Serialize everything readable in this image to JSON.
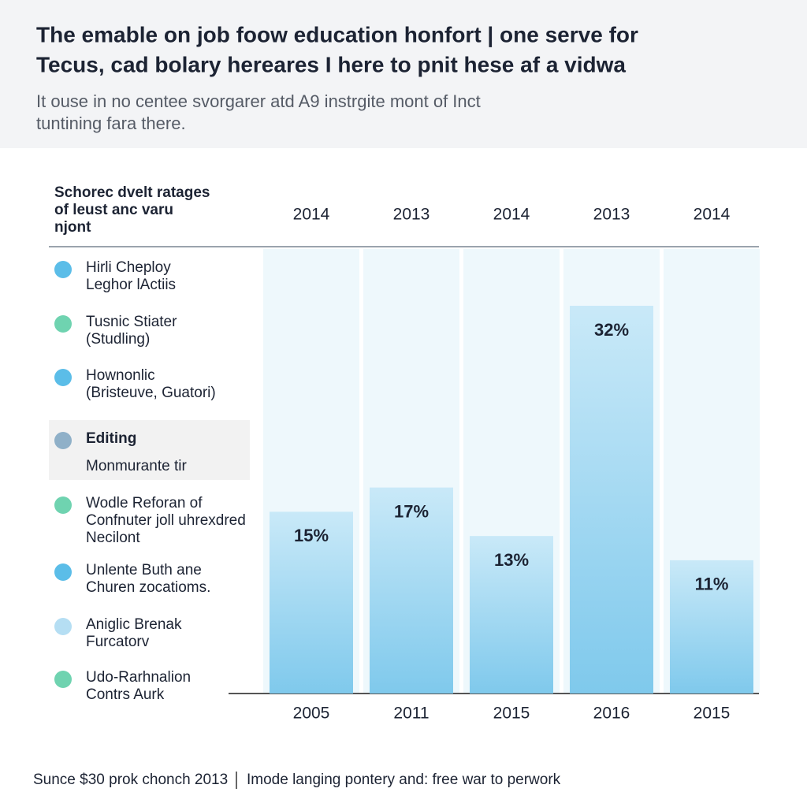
{
  "chart_data": {
    "type": "bar",
    "title": [
      "The emable on job foow education honfort | one serve for",
      "Tecus, cad bolary hereares I here to pnit hese af a vidwa"
    ],
    "subtitle": [
      "It ouse in no centee svorgarer atd A9 instrgite mont of Inct",
      "tuntining fara there."
    ],
    "legend_title": [
      "Schorec dvelt ratages",
      "of leust anc varu",
      "njont"
    ],
    "header_years": [
      "2014",
      "2013",
      "2014",
      "2013",
      "2014"
    ],
    "categories": [
      "2005",
      "2011",
      "2015",
      "2016",
      "2015"
    ],
    "values": [
      15,
      17,
      13,
      32,
      11
    ],
    "value_labels": [
      "15%",
      "17%",
      "13%",
      "32%",
      "11%"
    ],
    "legend_items": [
      {
        "lines": [
          "Hirli Cheploy",
          "Leghor lActiis"
        ],
        "color": "#5bbde8"
      },
      {
        "lines": [
          "Tusnic Stiater",
          "(Studling)"
        ],
        "color": "#6fd3b0"
      },
      {
        "lines": [
          "Hownonlic",
          "(Bristeuve, Guatori)"
        ],
        "color": "#5bbde8"
      },
      {
        "lines": [
          "Editing",
          "Monmurante tir"
        ],
        "color": "#8fb0c8",
        "highlighted": true
      },
      {
        "lines": [
          "Wodle Reforan of",
          "Confnuter joll uhrexdred",
          "Necilont"
        ],
        "color": "#6fd3b0"
      },
      {
        "lines": [
          "Unlente Buth ane",
          "Churen zocatioms."
        ],
        "color": "#5bbde8"
      },
      {
        "lines": [
          "Aniglic Brenak",
          "Furcatorv"
        ],
        "color": "#b5def3"
      },
      {
        "lines": [
          "Udo-Rarhnalion",
          "Contrs Aurk"
        ],
        "color": "#6fd3b0"
      }
    ],
    "footer": [
      "Sunce $30 prok chonch 2013",
      "Imode langing pontery and: free war to perwork"
    ]
  }
}
